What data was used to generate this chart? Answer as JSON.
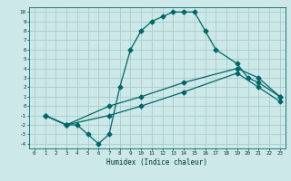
{
  "xlabel": "Humidex (Indice chaleur)",
  "ylabel": "",
  "bg_color": "#cce8e8",
  "grid_color": "#aacccc",
  "line_color": "#006666",
  "xlim": [
    -0.5,
    23.5
  ],
  "ylim": [
    -4.5,
    10.5
  ],
  "xticks": [
    0,
    1,
    2,
    3,
    4,
    5,
    6,
    7,
    8,
    9,
    10,
    11,
    12,
    13,
    14,
    15,
    16,
    17,
    18,
    19,
    20,
    21,
    22,
    23
  ],
  "yticks": [
    -4,
    -3,
    -2,
    -1,
    0,
    1,
    2,
    3,
    4,
    5,
    6,
    7,
    8,
    9,
    10
  ],
  "line1_x": [
    1,
    3,
    4,
    5,
    6,
    7,
    8,
    9,
    10,
    11,
    12,
    13,
    14,
    15,
    16,
    17,
    19,
    20,
    21,
    23
  ],
  "line1_y": [
    -1,
    -2,
    -2,
    -3,
    -4,
    -3,
    2,
    6,
    8,
    9,
    9.5,
    10,
    10,
    10,
    8,
    6,
    4.5,
    3,
    2.5,
    1
  ],
  "line2_x": [
    1,
    3,
    7,
    10,
    14,
    19,
    21,
    23
  ],
  "line2_y": [
    -1,
    -2,
    0,
    1,
    2.5,
    4,
    3,
    1
  ],
  "line3_x": [
    1,
    3,
    7,
    10,
    14,
    19,
    21,
    23
  ],
  "line3_y": [
    -1,
    -2,
    -1,
    0,
    1.5,
    3.5,
    2,
    0.5
  ]
}
